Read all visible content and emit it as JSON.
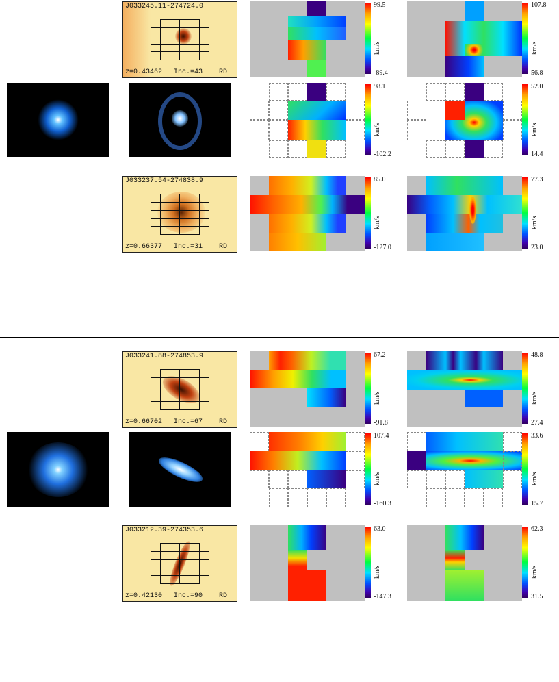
{
  "rows": [
    {
      "id": "J033245.11-274724.0",
      "z": "z=0.43462",
      "inc": "Inc.=43",
      "type": "RD",
      "vel": {
        "max": "99.5",
        "min": "-89.4",
        "unit": "km/s"
      },
      "disp": {
        "max": "107.8",
        "min": "56.8",
        "unit": "km/s"
      },
      "model_vel": {
        "max": "98.1",
        "min": "-102.2",
        "unit": "km/s"
      },
      "model_disp": {
        "max": "52.0",
        "min": "14.4",
        "unit": "km/s"
      }
    },
    {
      "id": "J033237.54-274838.9",
      "z": "z=0.66377",
      "inc": "Inc.=31",
      "type": "RD",
      "vel": {
        "max": "85.0",
        "min": "-127.0",
        "unit": "km/s"
      },
      "disp": {
        "max": "77.3",
        "min": "23.0",
        "unit": "km/s"
      }
    },
    {
      "id": "J033241.88-274853.9",
      "z": "z=0.66702",
      "inc": "Inc.=67",
      "type": "RD",
      "vel": {
        "max": "67.2",
        "min": "-91.8",
        "unit": "km/s"
      },
      "disp": {
        "max": "48.8",
        "min": "27.4",
        "unit": "km/s"
      },
      "model_vel": {
        "max": "107.4",
        "min": "-160.3",
        "unit": "km/s"
      },
      "model_disp": {
        "max": "33.6",
        "min": "15.7",
        "unit": "km/s"
      }
    },
    {
      "id": "J033212.39-274353.6",
      "z": "z=0.42130",
      "inc": "Inc.=90",
      "type": "RD",
      "vel": {
        "max": "63.0",
        "min": "-147.3",
        "unit": "km/s"
      },
      "disp": {
        "max": "62.3",
        "min": "31.5",
        "unit": "km/s"
      }
    }
  ],
  "colors": {
    "stamp_bg": "#f9e7a4",
    "masked": "#c0c0c0",
    "red": "#ff1a00",
    "orange": "#ff8c00",
    "yellow": "#f8f000",
    "green": "#30e030",
    "cyan": "#00d8f0",
    "blue": "#0040ff",
    "purple": "#3a0080"
  }
}
